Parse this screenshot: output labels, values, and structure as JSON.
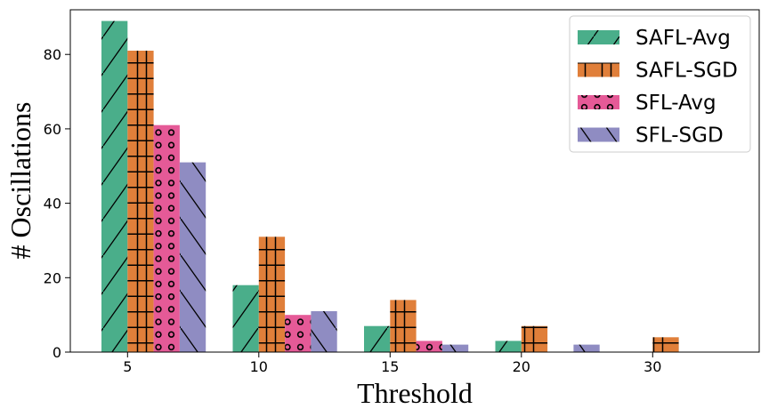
{
  "chart_data": {
    "type": "bar",
    "title": "",
    "xlabel": "Threshold",
    "ylabel": "# Oscillations",
    "categories": [
      "5",
      "10",
      "15",
      "20",
      "30"
    ],
    "ylim": [
      0,
      92
    ],
    "yticks": [
      0,
      20,
      40,
      60,
      80
    ],
    "grid": false,
    "legend_position": "top-right",
    "series": [
      {
        "name": "SAFL-Avg",
        "color": "#4aae8a",
        "pattern": "forward-slash",
        "values": [
          89,
          18,
          7,
          3,
          0
        ]
      },
      {
        "name": "SAFL-SGD",
        "color": "#e07f3a",
        "pattern": "grid",
        "values": [
          81,
          31,
          14,
          7,
          4
        ]
      },
      {
        "name": "SFL-Avg",
        "color": "#e55a97",
        "pattern": "circles",
        "values": [
          61,
          10,
          3,
          0,
          0
        ]
      },
      {
        "name": "SFL-SGD",
        "color": "#8f8cc2",
        "pattern": "back-slash",
        "values": [
          51,
          11,
          2,
          2,
          0
        ]
      }
    ]
  }
}
